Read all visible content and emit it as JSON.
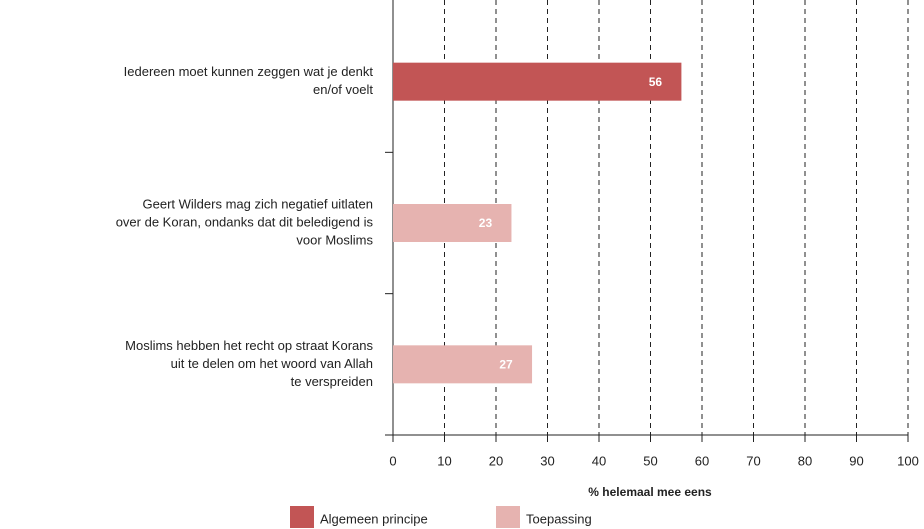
{
  "chart_data": {
    "type": "bar",
    "orientation": "horizontal",
    "categories": [
      [
        "Iedereen moet kunnen zeggen wat je denkt",
        "en/of voelt"
      ],
      [
        "Geert Wilders mag zich negatief uitlaten",
        "over de Koran, ondanks dat dit beledigend is",
        "voor Moslims"
      ],
      [
        "Moslims hebben het recht op straat Korans",
        "uit te delen om het woord van Allah",
        "te verspreiden"
      ]
    ],
    "series": [
      {
        "name": "Algemeen principe",
        "color": "#c25555",
        "values": [
          56,
          null,
          null
        ]
      },
      {
        "name": "Toepassing",
        "color": "#e6b3b0",
        "values": [
          null,
          23,
          27
        ]
      }
    ],
    "xlabel": "% helemaal mee eens",
    "xlim": [
      0,
      100
    ],
    "xticks": [
      0,
      10,
      20,
      30,
      40,
      50,
      60,
      70,
      80,
      90,
      100
    ],
    "grid": true,
    "legend": "bottom"
  }
}
